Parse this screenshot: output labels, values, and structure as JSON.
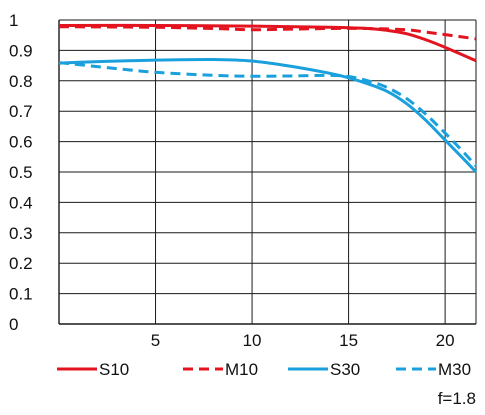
{
  "chart_data": {
    "type": "line",
    "x_ticks": [
      "5",
      "10",
      "15",
      "20"
    ],
    "y_ticks": [
      "0",
      "0.1",
      "0.2",
      "0.3",
      "0.4",
      "0.5",
      "0.6",
      "0.7",
      "0.8",
      "0.9",
      "1"
    ],
    "xlim": [
      0,
      21.6
    ],
    "ylim": [
      0,
      1
    ],
    "grid": true,
    "legend_position": "bottom",
    "annotation": "f=1.8",
    "series": [
      {
        "name": "S10",
        "color": "#e3141f",
        "dash": "solid",
        "x": [
          0,
          5,
          10,
          14,
          16,
          17,
          18,
          19,
          20,
          21.6
        ],
        "y": [
          0.982,
          0.982,
          0.98,
          0.976,
          0.972,
          0.966,
          0.955,
          0.935,
          0.91,
          0.866
        ]
      },
      {
        "name": "M10",
        "color": "#e3141f",
        "dash": "dashed",
        "x": [
          0,
          5,
          8,
          10,
          12,
          14,
          16,
          18,
          19,
          20,
          21.6
        ],
        "y": [
          0.978,
          0.976,
          0.972,
          0.968,
          0.97,
          0.972,
          0.972,
          0.968,
          0.96,
          0.952,
          0.938
        ]
      },
      {
        "name": "S30",
        "color": "#1aa0dc",
        "dash": "solid",
        "x": [
          0,
          2,
          5,
          8,
          10,
          12,
          14,
          15,
          16,
          17,
          18,
          19,
          20,
          21,
          21.6
        ],
        "y": [
          0.858,
          0.863,
          0.868,
          0.87,
          0.865,
          0.848,
          0.825,
          0.81,
          0.79,
          0.765,
          0.725,
          0.67,
          0.605,
          0.54,
          0.5
        ]
      },
      {
        "name": "M30",
        "color": "#1aa0dc",
        "dash": "dashed",
        "x": [
          0,
          3,
          5,
          8,
          10,
          12,
          14,
          15,
          16,
          17,
          18,
          19,
          20,
          21,
          21.6
        ],
        "y": [
          0.86,
          0.84,
          0.828,
          0.818,
          0.815,
          0.816,
          0.818,
          0.814,
          0.8,
          0.778,
          0.742,
          0.69,
          0.628,
          0.562,
          0.52
        ]
      }
    ]
  }
}
